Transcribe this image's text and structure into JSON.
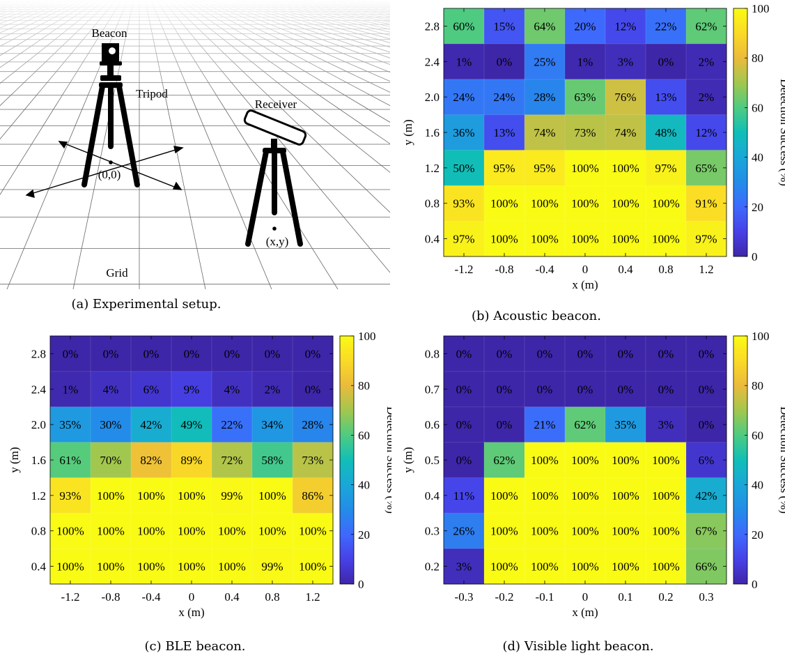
{
  "panel_a": {
    "caption": "(a) Experimental setup.",
    "labels": {
      "beacon": "Beacon",
      "tripod": "Tripod",
      "receiver": "Receiver",
      "origin": "(0,0)",
      "receiver_position": "(x,y)",
      "grid": "Grid"
    }
  },
  "chart_data": [
    {
      "id": "b",
      "type": "heatmap",
      "caption": "(b) Acoustic beacon.",
      "xlabel": "x (m)",
      "ylabel": "y (m)",
      "colorbar_label": "Detection Success (%)",
      "colorbar_ticks": [
        "0",
        "20",
        "40",
        "60",
        "80",
        "100"
      ],
      "x": [
        "-1.2",
        "-0.8",
        "-0.4",
        "0",
        "0.4",
        "0.8",
        "1.2"
      ],
      "y": [
        "2.8",
        "2.4",
        "2.0",
        "1.6",
        "1.2",
        "0.8",
        "0.4"
      ],
      "values": [
        [
          60,
          15,
          64,
          20,
          12,
          22,
          62
        ],
        [
          1,
          0,
          25,
          1,
          3,
          0,
          2
        ],
        [
          24,
          24,
          28,
          63,
          76,
          13,
          2
        ],
        [
          36,
          13,
          74,
          73,
          74,
          48,
          12
        ],
        [
          50,
          95,
          95,
          100,
          100,
          97,
          65
        ],
        [
          93,
          100,
          100,
          100,
          100,
          100,
          91
        ],
        [
          97,
          100,
          100,
          100,
          100,
          100,
          97
        ]
      ],
      "cell_labels": [
        [
          "60%",
          "15%",
          "64%",
          "20%",
          "12%",
          "22%",
          "62%"
        ],
        [
          "1%",
          "0%",
          "25%",
          "1%",
          "3%",
          "0%",
          "2%"
        ],
        [
          "24%",
          "24%",
          "28%",
          "63%",
          "76%",
          "13%",
          "2%"
        ],
        [
          "36%",
          "13%",
          "74%",
          "73%",
          "74%",
          "48%",
          "12%"
        ],
        [
          "50%",
          "95%",
          "95%",
          "100%",
          "100%",
          "97%",
          "65%"
        ],
        [
          "93%",
          "100%",
          "100%",
          "100%",
          "100%",
          "100%",
          "91%"
        ],
        [
          "97%",
          "100%",
          "100%",
          "100%",
          "100%",
          "100%",
          "97%"
        ]
      ],
      "zlim": [
        0,
        100
      ],
      "colormap": "parula"
    },
    {
      "id": "c",
      "type": "heatmap",
      "caption": "(c) BLE beacon.",
      "xlabel": "x (m)",
      "ylabel": "y (m)",
      "colorbar_label": "Detection Success (%)",
      "colorbar_ticks": [
        "0",
        "20",
        "40",
        "60",
        "80",
        "100"
      ],
      "x": [
        "-1.2",
        "-0.8",
        "-0.4",
        "0",
        "0.4",
        "0.8",
        "1.2"
      ],
      "y": [
        "2.8",
        "2.4",
        "2.0",
        "1.6",
        "1.2",
        "0.8",
        "0.4"
      ],
      "values": [
        [
          0,
          0,
          0,
          0,
          0,
          0,
          0
        ],
        [
          1,
          4,
          6,
          9,
          4,
          2,
          0
        ],
        [
          35,
          30,
          42,
          49,
          22,
          34,
          28
        ],
        [
          61,
          70,
          82,
          89,
          72,
          58,
          73
        ],
        [
          93,
          100,
          100,
          100,
          99,
          100,
          86
        ],
        [
          100,
          100,
          100,
          100,
          100,
          100,
          100
        ],
        [
          100,
          100,
          100,
          100,
          100,
          99,
          100
        ]
      ],
      "cell_labels": [
        [
          "0%",
          "0%",
          "0%",
          "0%",
          "0%",
          "0%",
          "0%"
        ],
        [
          "1%",
          "4%",
          "6%",
          "9%",
          "4%",
          "2%",
          "0%"
        ],
        [
          "35%",
          "30%",
          "42%",
          "49%",
          "22%",
          "34%",
          "28%"
        ],
        [
          "61%",
          "70%",
          "82%",
          "89%",
          "72%",
          "58%",
          "73%"
        ],
        [
          "93%",
          "100%",
          "100%",
          "100%",
          "99%",
          "100%",
          "86%"
        ],
        [
          "100%",
          "100%",
          "100%",
          "100%",
          "100%",
          "100%",
          "100%"
        ],
        [
          "100%",
          "100%",
          "100%",
          "100%",
          "100%",
          "99%",
          "100%"
        ]
      ],
      "zlim": [
        0,
        100
      ],
      "colormap": "parula"
    },
    {
      "id": "d",
      "type": "heatmap",
      "caption": "(d) Visible light beacon.",
      "xlabel": "x (m)",
      "ylabel": "y (m)",
      "colorbar_label": "Detection Success (%)",
      "colorbar_ticks": [
        "0",
        "20",
        "40",
        "60",
        "80",
        "100"
      ],
      "x": [
        "-0.3",
        "-0.2",
        "-0.1",
        "0",
        "0.1",
        "0.2",
        "0.3"
      ],
      "y": [
        "0.8",
        "0.7",
        "0.6",
        "0.5",
        "0.4",
        "0.3",
        "0.2"
      ],
      "values": [
        [
          0,
          0,
          0,
          0,
          0,
          0,
          0
        ],
        [
          0,
          0,
          0,
          0,
          0,
          0,
          0
        ],
        [
          0,
          0,
          21,
          62,
          35,
          3,
          0
        ],
        [
          0,
          62,
          100,
          100,
          100,
          100,
          6
        ],
        [
          11,
          100,
          100,
          100,
          100,
          100,
          42
        ],
        [
          26,
          100,
          100,
          100,
          100,
          100,
          67
        ],
        [
          3,
          100,
          100,
          100,
          100,
          100,
          66
        ]
      ],
      "cell_labels": [
        [
          "0%",
          "0%",
          "0%",
          "0%",
          "0%",
          "0%",
          "0%"
        ],
        [
          "0%",
          "0%",
          "0%",
          "0%",
          "0%",
          "0%",
          "0%"
        ],
        [
          "0%",
          "0%",
          "21%",
          "62%",
          "35%",
          "3%",
          "0%"
        ],
        [
          "0%",
          "62%",
          "100%",
          "100%",
          "100%",
          "100%",
          "6%"
        ],
        [
          "11%",
          "100%",
          "100%",
          "100%",
          "100%",
          "100%",
          "42%"
        ],
        [
          "26%",
          "100%",
          "100%",
          "100%",
          "100%",
          "100%",
          "67%"
        ],
        [
          "3%",
          "100%",
          "100%",
          "100%",
          "100%",
          "100%",
          "66%"
        ]
      ],
      "zlim": [
        0,
        100
      ],
      "colormap": "parula"
    }
  ]
}
